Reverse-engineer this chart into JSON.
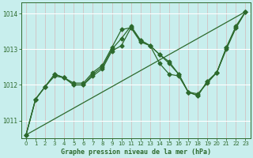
{
  "title": "Graphe pression niveau de la mer (hPa)",
  "bg_color": "#c8eeed",
  "grid_color_v": "#d4b8b8",
  "grid_color_h": "#ffffff",
  "line_color": "#2d6a2d",
  "marker": "D",
  "markersize": 2.5,
  "linewidth": 0.9,
  "xlim": [
    -0.5,
    23.5
  ],
  "ylim": [
    1010.5,
    1014.3
  ],
  "yticks": [
    1011,
    1012,
    1013,
    1014
  ],
  "xticks": [
    0,
    1,
    2,
    3,
    4,
    5,
    6,
    7,
    8,
    9,
    10,
    11,
    12,
    13,
    14,
    15,
    16,
    17,
    18,
    19,
    20,
    21,
    22,
    23
  ],
  "hours": [
    0,
    1,
    2,
    3,
    4,
    5,
    6,
    7,
    8,
    9,
    10,
    11,
    12,
    13,
    14,
    15,
    16,
    17,
    18,
    19,
    20,
    21,
    22,
    23
  ],
  "line1_x": [
    0,
    23
  ],
  "line1_y": [
    1010.6,
    1014.05
  ],
  "line2": [
    1010.6,
    1011.6,
    1011.95,
    1012.25,
    1012.2,
    1012.0,
    1012.0,
    1012.25,
    1012.45,
    1012.95,
    1013.1,
    1013.6,
    1013.2,
    1013.1,
    1012.6,
    1012.3,
    1012.25,
    1011.8,
    1011.75,
    1012.05,
    1012.35,
    1013.05,
    1013.6,
    1014.05
  ],
  "line3": [
    1010.6,
    1011.6,
    1011.95,
    1012.3,
    1012.2,
    1012.0,
    1012.0,
    1012.3,
    1012.5,
    1013.0,
    1013.3,
    1013.65,
    1013.25,
    1013.1,
    1012.85,
    1012.6,
    1012.3,
    1011.8,
    1011.7,
    1012.1,
    1012.35,
    1013.0,
    1013.6,
    1014.05
  ],
  "line4": [
    1010.6,
    1011.6,
    1011.95,
    1012.3,
    1012.2,
    1012.05,
    1012.05,
    1012.35,
    1012.55,
    1013.05,
    1013.55,
    1013.6,
    1013.25,
    1013.1,
    1012.85,
    1012.65,
    1012.3,
    1011.8,
    1011.7,
    1012.1,
    1012.35,
    1013.05,
    1013.65,
    1014.05
  ]
}
